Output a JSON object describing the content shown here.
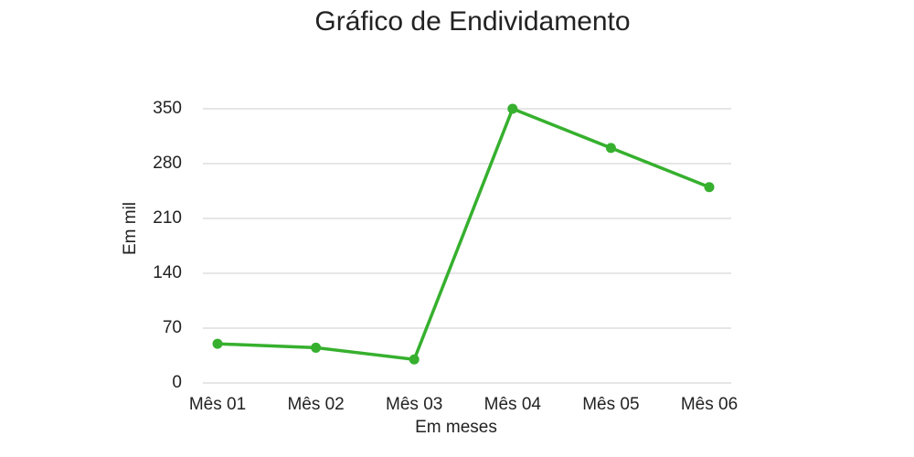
{
  "chart_data": {
    "type": "line",
    "title": "Gráfico de Endividamento",
    "x_label": "Em meses",
    "y_label": "Em mil",
    "categories": [
      "Mês 01",
      "Mês 02",
      "Mês 03",
      "Mês 04",
      "Mês 05",
      "Mês 06"
    ],
    "series": [
      {
        "name": "Endividamento",
        "color": "#36b02e",
        "values": [
          50,
          45,
          30,
          350,
          300,
          250
        ]
      }
    ],
    "ylim": [
      0,
      350
    ],
    "yticks": [
      0,
      70,
      140,
      210,
      280,
      350
    ],
    "grid": true
  }
}
